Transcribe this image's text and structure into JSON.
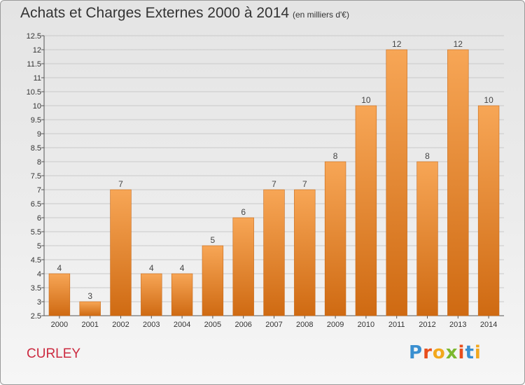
{
  "header": {
    "title": "Achats et Charges Externes 2000 à 2014",
    "subtitle": "(en milliers d'€)"
  },
  "footer": {
    "place": "CURLEY",
    "logo": "Proxiti",
    "logo_colors": [
      "#3a8fd0",
      "#e84e1c",
      "#f2a81d",
      "#7cb82f",
      "#e84e1c",
      "#3a8fd0",
      "#f2a81d"
    ]
  },
  "colors": {
    "bar_top": "#f7a656",
    "bar_bottom": "#cf6a12",
    "bar_edge": "#c86a1a",
    "grid": "#c9c9c9"
  },
  "chart_data": {
    "type": "bar",
    "title": "Achats et Charges Externes 2000 à 2014",
    "subtitle": "(en milliers d'€)",
    "xlabel": "",
    "ylabel": "",
    "categories": [
      "2000",
      "2001",
      "2002",
      "2003",
      "2004",
      "2005",
      "2006",
      "2007",
      "2008",
      "2009",
      "2010",
      "2011",
      "2012",
      "2013",
      "2014"
    ],
    "values": [
      4,
      3,
      7,
      4,
      4,
      5,
      6,
      7,
      7,
      8,
      10,
      12,
      8,
      12,
      10
    ],
    "ylim": [
      2.5,
      12.5
    ],
    "yticks": [
      "2.5",
      "3",
      "3.5",
      "4",
      "4.5",
      "5",
      "5.5",
      "6",
      "6.5",
      "7",
      "7.5",
      "8",
      "8.5",
      "9",
      "9.5",
      "10",
      "10.5",
      "11",
      "11.5",
      "12",
      "12.5"
    ],
    "grid": true,
    "legend": "none"
  }
}
